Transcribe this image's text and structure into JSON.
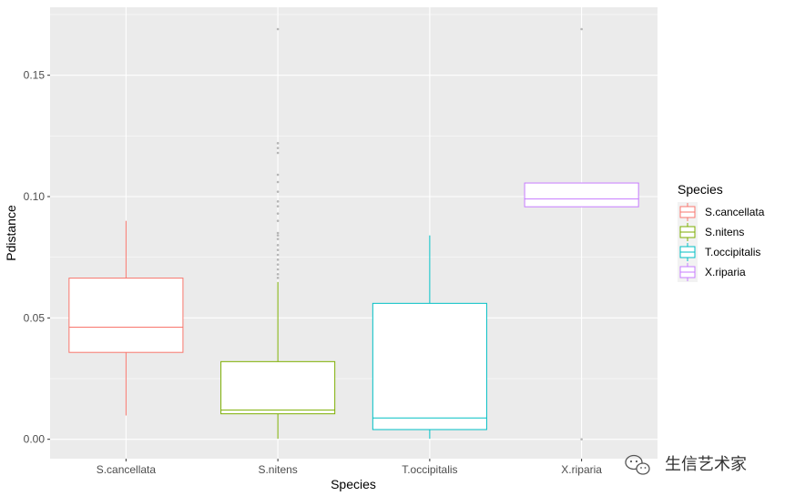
{
  "chart_data": {
    "type": "boxplot",
    "title": "",
    "xlabel": "Species",
    "ylabel": "Pdistance",
    "ylim": [
      -0.008,
      0.178
    ],
    "yticks": [
      0.0,
      0.05,
      0.1,
      0.15
    ],
    "ytick_labels": [
      "0.00",
      "0.05",
      "0.10",
      "0.15"
    ],
    "categories": [
      "S.cancellata",
      "S.nitens",
      "T.occipitalis",
      "X.riparia"
    ],
    "legend": {
      "title": "Species",
      "position": "right",
      "entries": [
        "S.cancellata",
        "S.nitens",
        "T.occipitalis",
        "X.riparia"
      ]
    },
    "grid": true,
    "background": "#ebebeb",
    "series": [
      {
        "name": "S.cancellata",
        "color": "#f8766d",
        "whisker_low": 0.0098,
        "q1": 0.0358,
        "median": 0.0462,
        "q3": 0.0664,
        "whisker_high": 0.09,
        "outliers": []
      },
      {
        "name": "S.nitens",
        "color": "#7cae00",
        "whisker_low": 0.0002,
        "q1": 0.0105,
        "median": 0.012,
        "q3": 0.032,
        "whisker_high": 0.0648,
        "outliers": [
          0.0665,
          0.068,
          0.07,
          0.072,
          0.074,
          0.076,
          0.078,
          0.08,
          0.0825,
          0.084,
          0.085,
          0.09,
          0.093,
          0.096,
          0.098,
          0.102,
          0.106,
          0.109,
          0.118,
          0.12,
          0.122,
          0.169
        ]
      },
      {
        "name": "T.occipitalis",
        "color": "#00bfc4",
        "whisker_low": 0.0002,
        "q1": 0.004,
        "median": 0.0088,
        "q3": 0.056,
        "whisker_high": 0.084,
        "outliers": []
      },
      {
        "name": "X.riparia",
        "color": "#c77cff",
        "whisker_low": 0.0958,
        "q1": 0.0958,
        "median": 0.099,
        "q3": 0.1056,
        "whisker_high": 0.1056,
        "outliers": [
          0.0,
          0.169
        ]
      }
    ]
  },
  "watermark": {
    "icon": "wechat-icon",
    "text": "生信艺术家"
  }
}
